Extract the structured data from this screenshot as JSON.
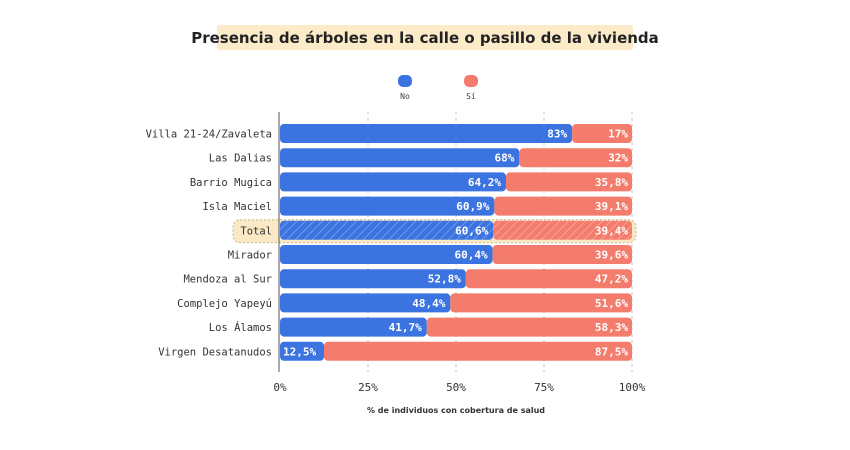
{
  "chart_data": {
    "type": "bar",
    "orientation": "horizontal",
    "stacked": true,
    "title": "Presencia de árboles en la calle o pasillo de la vivienda",
    "xlabel": "% de individuos con cobertura de salud",
    "ylabel": "",
    "xlim": [
      0,
      100
    ],
    "x_ticks": [
      "0%",
      "25%",
      "50%",
      "75%",
      "100%"
    ],
    "grid": "vertical dashed",
    "legend_position": "top-center",
    "categories": [
      "Villa 21-24/Zavaleta",
      "Las Dalias",
      "Barrio Mugica",
      "Isla Maciel",
      "Total",
      "Mirador",
      "Mendoza al Sur",
      "Complejo Yapeyú",
      "Los Álamos",
      "Virgen Desatanudos"
    ],
    "highlighted_category": "Total",
    "series": [
      {
        "name": "No",
        "color": "#3b73e0",
        "values": [
          83,
          68,
          64.2,
          60.9,
          60.6,
          60.4,
          52.8,
          48.4,
          41.7,
          12.5
        ],
        "labels": [
          "83%",
          "68%",
          "64,2%",
          "60,9%",
          "60,6%",
          "60,4%",
          "52,8%",
          "48,4%",
          "41,7%",
          "12,5%"
        ]
      },
      {
        "name": "Sí",
        "color": "#f47c6c",
        "values": [
          17,
          32,
          35.8,
          39.1,
          39.4,
          39.6,
          47.2,
          51.6,
          58.3,
          87.5
        ],
        "labels": [
          "17%",
          "32%",
          "35,8%",
          "39,1%",
          "39,4%",
          "39,6%",
          "47,2%",
          "51,6%",
          "58,3%",
          "87,5%"
        ]
      }
    ],
    "highlight_color": "#fbe9c6"
  }
}
